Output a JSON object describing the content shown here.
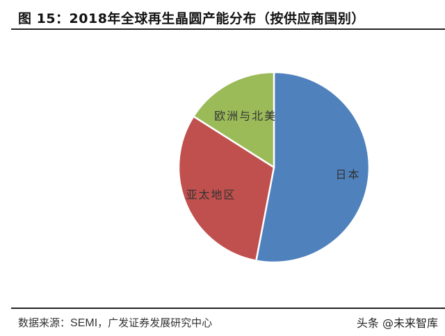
{
  "header": {
    "title": "图 15：2018年全球再生晶圆产能分布（按供应商国别）"
  },
  "footer": {
    "source_label": "数据来源：",
    "source_en": "SEMI",
    "source_rest": "，广发证券发展研究中心",
    "watermark": "头条 @未来智库"
  },
  "chart_data": {
    "type": "pie",
    "title": "2018年全球再生晶圆产能分布（按供应商国别）",
    "labels": [
      "日本",
      "亚太地区",
      "欧洲与北美"
    ],
    "values": [
      53,
      31,
      16
    ],
    "unit": "%",
    "colors": [
      "#4F81BD",
      "#C0504D",
      "#9BBB59"
    ],
    "start_angle_deg": 0,
    "direction": "clockwise",
    "legend": "none (labels inside slices)"
  }
}
